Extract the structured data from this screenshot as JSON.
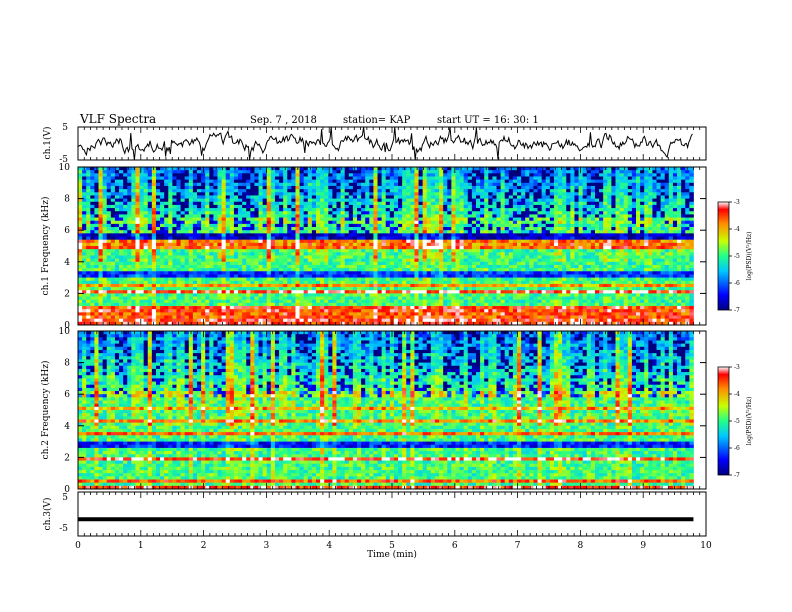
{
  "header": {
    "title": "VLF Spectra",
    "date": "Sep. 7 , 2018",
    "station": "station= KAP",
    "start_ut": "start UT = 16: 30: 1"
  },
  "chart_data": [
    {
      "type": "line",
      "title": "",
      "ylabel": "ch.1(V)",
      "ylim": [
        -5,
        5
      ],
      "yticks": [
        "5",
        "-5"
      ],
      "description_series": "waveform, mostly between about -3 and 3 V",
      "xlim": [
        0,
        10
      ],
      "grid": false
    },
    {
      "type": "heatmap",
      "ylabel": "ch.1 Frequency (kHz)",
      "ylim": [
        0,
        10
      ],
      "yticks": [
        "0",
        "2",
        "4",
        "6",
        "8",
        "10"
      ],
      "xlim": [
        0,
        10
      ],
      "data_end_min": 9.8,
      "colorbar": {
        "label": "log(PSD)(V²/Hz)",
        "ticks": [
          "-3",
          "-4",
          "-5",
          "-6",
          "-7"
        ],
        "range": [
          -7,
          -3
        ]
      },
      "bands_khz": [
        {
          "y": 0.2,
          "v": -3.4
        },
        {
          "y": 0.6,
          "v": -3.6
        },
        {
          "y": 1.0,
          "v": -3.5
        },
        {
          "y": 2.1,
          "v": -3.3
        },
        {
          "y": 2.5,
          "v": -4.0
        },
        {
          "y": 3.2,
          "v": -6.3
        },
        {
          "y": 4.9,
          "v": -3.7
        },
        {
          "y": 5.2,
          "v": -3.8
        },
        {
          "y": 5.6,
          "v": -6.8
        },
        {
          "y": 6.6,
          "v": -4.9
        }
      ]
    },
    {
      "type": "heatmap",
      "ylabel": "ch.2 Frequency (kHz)",
      "ylim": [
        0,
        10
      ],
      "yticks": [
        "0",
        "2",
        "4",
        "6",
        "8",
        "10"
      ],
      "xlim": [
        0,
        10
      ],
      "data_end_min": 9.8,
      "colorbar": {
        "label": "log(PSD)(V²/Hz)",
        "ticks": [
          "-3",
          "-4",
          "-5",
          "-6",
          "-7"
        ],
        "range": [
          -7,
          -3
        ]
      },
      "bands_khz": [
        {
          "y": 0.1,
          "v": -3.4
        },
        {
          "y": 0.5,
          "v": -3.7
        },
        {
          "y": 1.9,
          "v": -3.3
        },
        {
          "y": 2.8,
          "v": -6.4
        },
        {
          "y": 3.5,
          "v": -3.8
        },
        {
          "y": 4.3,
          "v": -3.9
        },
        {
          "y": 5.1,
          "v": -4.2
        },
        {
          "y": 6.0,
          "v": -4.6
        }
      ]
    },
    {
      "type": "line",
      "ylabel": "ch.3(V)",
      "ylim": [
        -5,
        5
      ],
      "yticks": [
        "5",
        "-5"
      ],
      "xlim": [
        0,
        10
      ],
      "series": [
        {
          "x": [
            0,
            9.8
          ],
          "y": [
            -1.2,
            -1.2
          ]
        }
      ]
    }
  ],
  "xaxis": {
    "label": "Time (min)",
    "ticks": [
      "0",
      "1",
      "2",
      "3",
      "4",
      "5",
      "6",
      "7",
      "8",
      "9",
      "10"
    ]
  }
}
